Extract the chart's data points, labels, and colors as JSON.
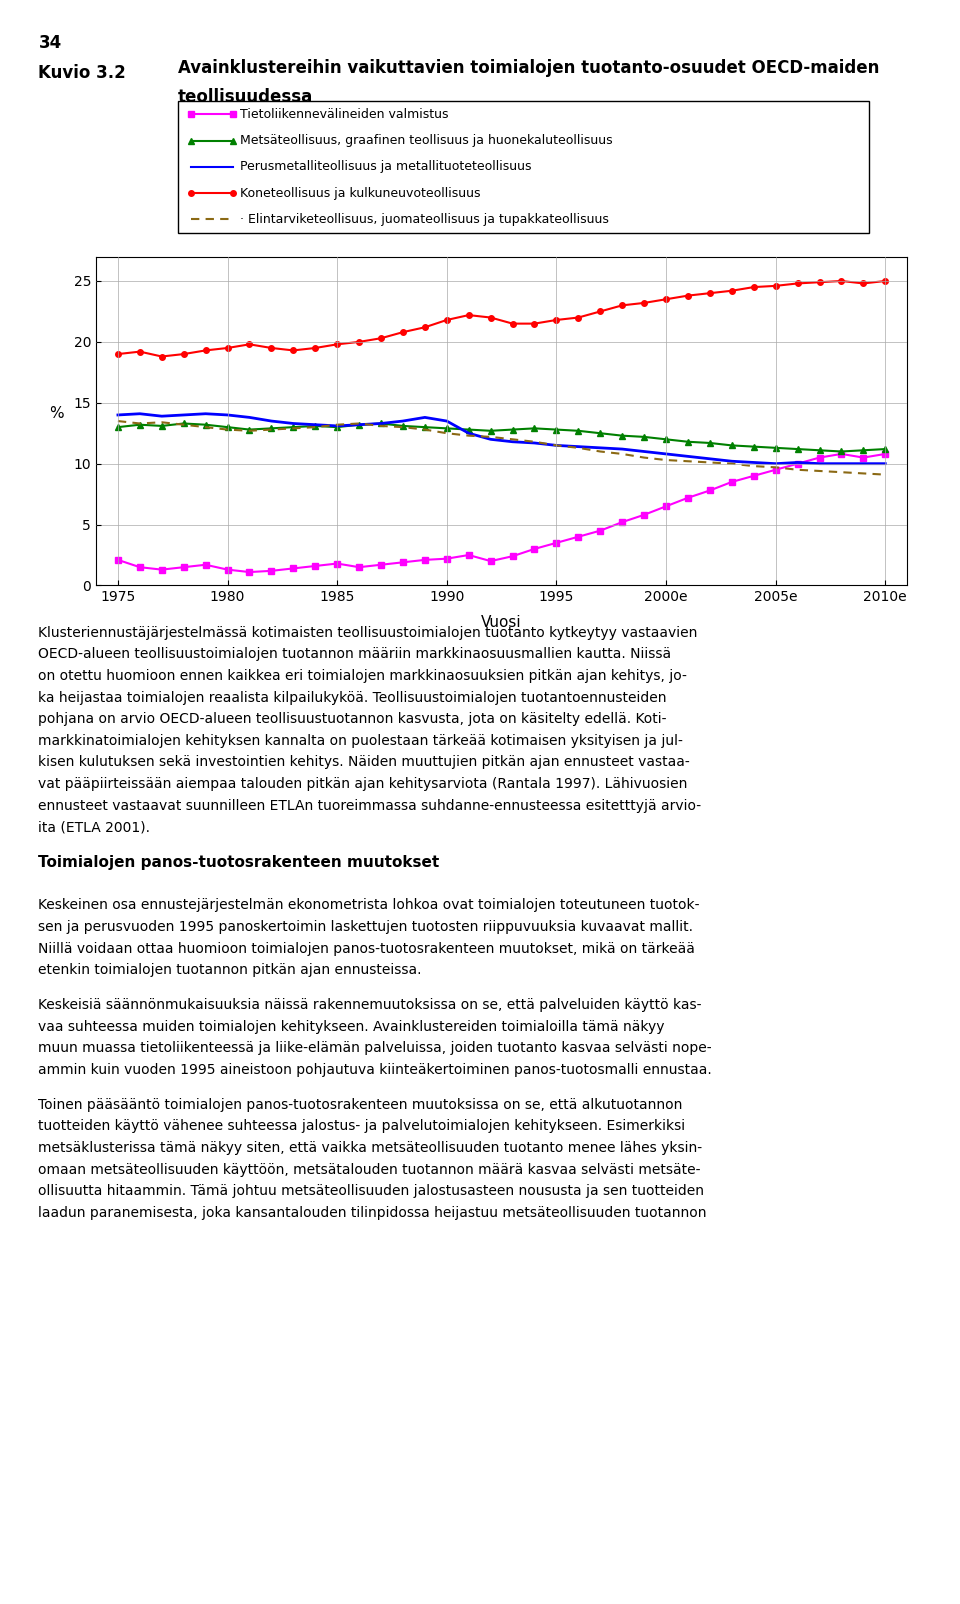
{
  "page_number": "34",
  "figure_label": "Kuvio 3.2",
  "title_part1": "Avainklustereihin vaikuttavien toimialojen tuotanto-osuudet OECD-maiden",
  "title_part2": "teollisuudessa",
  "ylabel": "%",
  "xlabel": "Vuosi",
  "ylim": [
    0,
    27
  ],
  "yticks": [
    0,
    5,
    10,
    15,
    20,
    25
  ],
  "xtick_labels": [
    "1975",
    "1980",
    "1985",
    "1990",
    "1995",
    "2000e",
    "2005e",
    "2010e"
  ],
  "xtick_positions": [
    1975,
    1980,
    1985,
    1990,
    1995,
    2000,
    2005,
    2010
  ],
  "legend_entries": [
    "Tietoliikennevälineiden valmistus",
    "Metsäteollisuus, graafinen teollisuus ja huonekaluteollisuus",
    "Perusmetalliteollisuus ja metallituoteteollisuus",
    "Koneteollisuus ja kulkuneuvoteollisuus",
    "· Elintarviketeollisuus, juomateollisuus ja tupakkateollisuus"
  ],
  "series_colors": [
    "#FF00FF",
    "#008000",
    "#0000FF",
    "#FF0000",
    "#8B6914"
  ],
  "years": [
    1975,
    1976,
    1977,
    1978,
    1979,
    1980,
    1981,
    1982,
    1983,
    1984,
    1985,
    1986,
    1987,
    1988,
    1989,
    1990,
    1991,
    1992,
    1993,
    1994,
    1995,
    1996,
    1997,
    1998,
    1999,
    2000,
    2001,
    2002,
    2003,
    2004,
    2005,
    2006,
    2007,
    2008,
    2009,
    2010
  ],
  "tele": [
    2.1,
    1.5,
    1.3,
    1.5,
    1.7,
    1.3,
    1.1,
    1.2,
    1.4,
    1.6,
    1.8,
    1.5,
    1.7,
    1.9,
    2.1,
    2.2,
    2.5,
    2.0,
    2.4,
    3.0,
    3.5,
    4.0,
    4.5,
    5.2,
    5.8,
    6.5,
    7.2,
    7.8,
    8.5,
    9.0,
    9.5,
    10.0,
    10.5,
    10.8,
    10.5,
    10.8
  ],
  "forest": [
    13.0,
    13.2,
    13.1,
    13.3,
    13.2,
    13.0,
    12.8,
    12.9,
    13.0,
    13.1,
    13.0,
    13.2,
    13.3,
    13.1,
    13.0,
    12.9,
    12.8,
    12.7,
    12.8,
    12.9,
    12.8,
    12.7,
    12.5,
    12.3,
    12.2,
    12.0,
    11.8,
    11.7,
    11.5,
    11.4,
    11.3,
    11.2,
    11.1,
    11.0,
    11.1,
    11.2
  ],
  "metals": [
    14.0,
    14.1,
    13.9,
    14.0,
    14.1,
    14.0,
    13.8,
    13.5,
    13.3,
    13.2,
    13.1,
    13.2,
    13.3,
    13.5,
    13.8,
    13.5,
    12.5,
    12.0,
    11.8,
    11.7,
    11.5,
    11.4,
    11.3,
    11.2,
    11.0,
    10.8,
    10.6,
    10.4,
    10.2,
    10.1,
    10.0,
    10.1,
    10.0,
    10.0,
    10.0,
    10.0
  ],
  "machines": [
    19.0,
    19.2,
    18.8,
    19.0,
    19.3,
    19.5,
    19.8,
    19.5,
    19.3,
    19.5,
    19.8,
    20.0,
    20.3,
    20.8,
    21.2,
    21.8,
    22.2,
    22.0,
    21.5,
    21.5,
    21.8,
    22.0,
    22.5,
    23.0,
    23.2,
    23.5,
    23.8,
    24.0,
    24.2,
    24.5,
    24.6,
    24.8,
    24.9,
    25.0,
    24.8,
    25.0
  ],
  "food": [
    13.5,
    13.3,
    13.4,
    13.2,
    13.0,
    12.8,
    12.7,
    12.8,
    12.9,
    13.0,
    13.2,
    13.3,
    13.1,
    13.0,
    12.8,
    12.5,
    12.3,
    12.2,
    12.0,
    11.8,
    11.5,
    11.3,
    11.0,
    10.8,
    10.5,
    10.3,
    10.2,
    10.1,
    10.0,
    9.8,
    9.7,
    9.5,
    9.4,
    9.3,
    9.2,
    9.1
  ],
  "body_texts": [
    [
      "Klusteriennustäjärjestelmässä kotimaisten teollisuustoimialojen tuotanto kytkeytyy vastaavien",
      false
    ],
    [
      "OECD-alueen teollisuustoimialojen tuotannon määriin markkinaosuusmallien kautta. Niissä",
      false
    ],
    [
      "on otettu huomioon ennen kaikkea eri toimialojen markkinaosuuksien pitkän ajan kehitys, jo-",
      false
    ],
    [
      "ka heijastaa toimialojen reaalista kilpailukyköä. Teollisuustoimialojen tuotantoennusteiden",
      false
    ],
    [
      "pohjana on arvio OECD-alueen teollisuustuotannon kasvusta, jota on käsitelty edellä. Koti-",
      false
    ],
    [
      "markkinatoimialojen kehityksen kannalta on puolestaan tärkeää kotimaisen yksityisen ja jul-",
      false
    ],
    [
      "kisen kulutuksen sekä investointien kehitys. Näiden muuttujien pitkän ajan ennusteet vastaa-",
      false
    ],
    [
      "vat pääpiirteissään aiempaa talouden pitkän ajan kehitysarviota (Rantala 1997). Lähivuosien",
      false
    ],
    [
      "ennusteet vastaavat suunnilleen ETLAn tuoreimmassa suhdanne-ennusteessa esitetttyjä arvio-",
      false
    ],
    [
      "ita (ETLA 2001).",
      false
    ],
    [
      "",
      false
    ],
    [
      "Toimialojen panos-tuotosrakenteen muutokset",
      true
    ],
    [
      "",
      false
    ],
    [
      "Keskeinen osa ennustejärjestelmän ekonometrista lohkoa ovat toimialojen toteutuneen tuotok-",
      false
    ],
    [
      "sen ja perusvuoden 1995 panoskertoimin laskettujen tuotosten riippuvuuksia kuvaavat mallit.",
      false
    ],
    [
      "Niillä voidaan ottaa huomioon toimialojen panos-tuotosrakenteen muutokset, mikä on tärkeää",
      false
    ],
    [
      "etenkin toimialojen tuotannon pitkän ajan ennusteissa.",
      false
    ],
    [
      "",
      false
    ],
    [
      "Keskeisiä säännönmukaisuuksia näissä rakennemuutoksissa on se, että palveluiden käyttö kas-",
      false
    ],
    [
      "vaa suhteessa muiden toimialojen kehitykseen. Avainklustereiden toimialoilla tämä näkyy",
      false
    ],
    [
      "muun muassa tietoliikenteessä ja liike-elämän palveluissa, joiden tuotanto kasvaa selvästi nope-",
      false
    ],
    [
      "ammin kuin vuoden 1995 aineistoon pohjautuva kiinteäkertoiminen panos-tuotosmalli ennustaa.",
      false
    ],
    [
      "",
      false
    ],
    [
      "Toinen pääsääntö toimialojen panos-tuotosrakenteen muutoksissa on se, että alkutuotannon",
      false
    ],
    [
      "tuotteiden käyttö vähenee suhteessa jalostus- ja palvelutoimialojen kehitykseen. Esimerkiksi",
      false
    ],
    [
      "metsäklusterissa tämä näkyy siten, että vaikka metsäteollisuuden tuotanto menee lähes yksin-",
      false
    ],
    [
      "omaan metsäteollisuuden käyttöön, metsätalouden tuotannon määrä kasvaa selvästi metsäte-",
      false
    ],
    [
      "ollisuutta hitaammin. Tämä johtuu metsäteollisuuden jalostusasteen noususta ja sen tuotteiden",
      false
    ],
    [
      "laadun paranemisesta, joka kansantalouden tilinpidossa heijastuu metsäteollisuuden tuotannon",
      false
    ]
  ]
}
